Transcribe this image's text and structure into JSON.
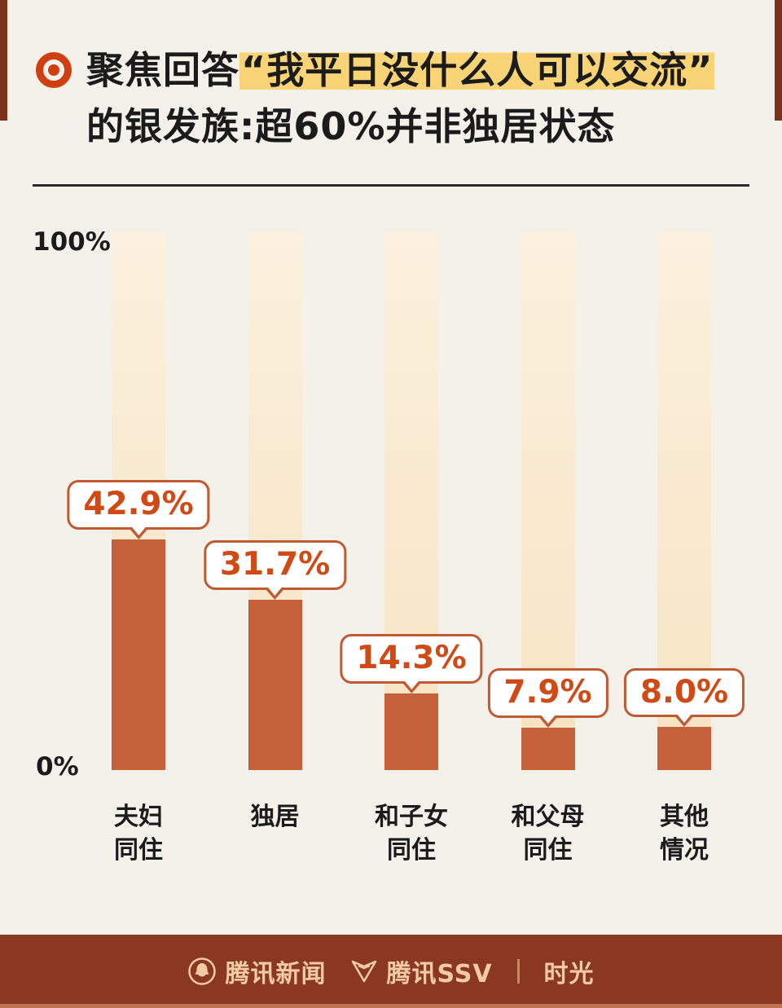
{
  "page": {
    "background_color": "#F4F1EB",
    "frame_color": "#7C311B",
    "accent_color": "#D03F12"
  },
  "header": {
    "bullet_icon": "target-circle-icon",
    "title_prefix": "聚焦回答",
    "title_highlight": "“我平日没什么人可以交流”",
    "title_line2": "的银发族:超60%并非独居状态",
    "highlight_color": "#F8D476"
  },
  "chart_data": {
    "type": "bar",
    "title": "聚焦回答“我平日没什么人可以交流”的银发族:超60%并非独居状态",
    "categories": [
      [
        "夫妇",
        "同住"
      ],
      [
        "独居"
      ],
      [
        "和子女",
        "同住"
      ],
      [
        "和父母",
        "同住"
      ],
      [
        "其他",
        "情况"
      ]
    ],
    "values": [
      42.9,
      31.7,
      14.3,
      7.9,
      8.0
    ],
    "display_values": [
      "42.9%",
      "31.7%",
      "14.3%",
      "7.9%",
      "8.0%"
    ],
    "ylabel": "",
    "xlabel": "",
    "ylim": [
      0,
      100
    ],
    "y_axis_labels": {
      "top": "100%",
      "bottom": "0%"
    },
    "grid": false,
    "legend": "none",
    "bar_color": "#C4603A",
    "track_color": "#F8E7CB",
    "value_label_color": "#D04A16"
  },
  "footer": {
    "background_color": "#8A3820",
    "text_color": "#F3CBA3",
    "brand_news": {
      "logo": "tencent-news-logo",
      "label": "腾讯新闻"
    },
    "brand_ssv": {
      "logo": "tencent-ssv-logo",
      "label": "腾讯SSV"
    },
    "separator": "|",
    "brand_time": {
      "label": "时光"
    }
  }
}
